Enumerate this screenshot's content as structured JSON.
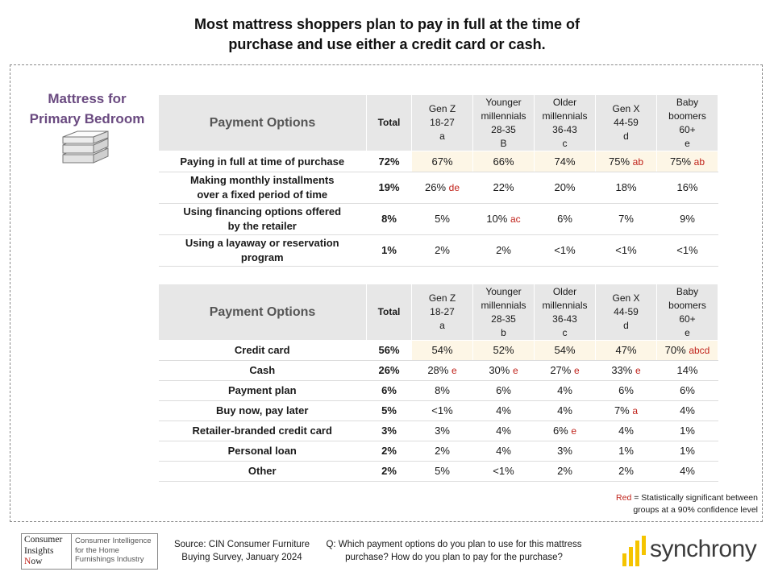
{
  "title": {
    "line1": "Most mattress shoppers plan to pay in full at the time of",
    "line2": "purchase and use either a credit card or cash."
  },
  "side_title": {
    "line1": "Mattress for",
    "line2": "Primary Bedroom"
  },
  "icons": {
    "mattress": "mattress-stack-icon",
    "synchrony": "synchrony-bars-icon"
  },
  "colors": {
    "significance_red": "#c0221a",
    "highlight_fill": "#fdf6e6",
    "header_fill": "#e7e7e7",
    "side_title": "#6a4a80"
  },
  "table1": {
    "headers": {
      "options": "Payment Options",
      "total": "Total",
      "gens": [
        {
          "l1": "",
          "l2": "Gen Z",
          "l3": "18-27",
          "l4": "a"
        },
        {
          "l1": "Younger",
          "l2": "millennials",
          "l3": "28-35",
          "l4": "B"
        },
        {
          "l1": "Older",
          "l2": "millennials",
          "l3": "36-43",
          "l4": "c"
        },
        {
          "l1": "",
          "l2": "Gen X",
          "l3": "44-59",
          "l4": "d"
        },
        {
          "l1": "Baby",
          "l2": "boomers",
          "l3": "60+",
          "l4": "e"
        }
      ]
    },
    "rows": [
      {
        "l1": "Paying in full at time of purchase",
        "l2": "",
        "total": "72%",
        "cells": [
          {
            "v": "67%",
            "s": ""
          },
          {
            "v": "66%",
            "s": ""
          },
          {
            "v": "74%",
            "s": ""
          },
          {
            "v": "75%",
            "s": "ab"
          },
          {
            "v": "75%",
            "s": "ab"
          }
        ]
      },
      {
        "l1": "Making monthly installments",
        "l2": "over a fixed period of time",
        "total": "19%",
        "cells": [
          {
            "v": "26%",
            "s": "de"
          },
          {
            "v": "22%",
            "s": ""
          },
          {
            "v": "20%",
            "s": ""
          },
          {
            "v": "18%",
            "s": ""
          },
          {
            "v": "16%",
            "s": ""
          }
        ]
      },
      {
        "l1": "Using financing options offered",
        "l2": "by the retailer",
        "total": "8%",
        "cells": [
          {
            "v": "5%",
            "s": ""
          },
          {
            "v": "10%",
            "s": "ac"
          },
          {
            "v": "6%",
            "s": ""
          },
          {
            "v": "7%",
            "s": ""
          },
          {
            "v": "9%",
            "s": ""
          }
        ]
      },
      {
        "l1": "Using a layaway or reservation",
        "l2": "program",
        "total": "1%",
        "cells": [
          {
            "v": "2%",
            "s": ""
          },
          {
            "v": "2%",
            "s": ""
          },
          {
            "v": "<1%",
            "s": ""
          },
          {
            "v": "<1%",
            "s": ""
          },
          {
            "v": "<1%",
            "s": ""
          }
        ]
      }
    ]
  },
  "table2": {
    "headers": {
      "options": "Payment Options",
      "total": "Total",
      "gens": [
        {
          "l1": "",
          "l2": "Gen Z",
          "l3": "18-27",
          "l4": "a"
        },
        {
          "l1": "Younger",
          "l2": "millennials",
          "l3": "28-35",
          "l4": "b"
        },
        {
          "l1": "Older",
          "l2": "millennials",
          "l3": "36-43",
          "l4": "c"
        },
        {
          "l1": "",
          "l2": "Gen X",
          "l3": "44-59",
          "l4": "d"
        },
        {
          "l1": "Baby",
          "l2": "boomers",
          "l3": "60+",
          "l4": "e"
        }
      ]
    },
    "rows": [
      {
        "l1": "Credit card",
        "l2": "",
        "total": "56%",
        "cells": [
          {
            "v": "54%",
            "s": ""
          },
          {
            "v": "52%",
            "s": ""
          },
          {
            "v": "54%",
            "s": ""
          },
          {
            "v": "47%",
            "s": ""
          },
          {
            "v": "70%",
            "s": "abcd"
          }
        ]
      },
      {
        "l1": "Cash",
        "l2": "",
        "total": "26%",
        "cells": [
          {
            "v": "28%",
            "s": "e"
          },
          {
            "v": "30%",
            "s": "e"
          },
          {
            "v": "27%",
            "s": "e"
          },
          {
            "v": "33%",
            "s": "e"
          },
          {
            "v": "14%",
            "s": ""
          }
        ]
      },
      {
        "l1": "Payment plan",
        "l2": "",
        "total": "6%",
        "cells": [
          {
            "v": "8%",
            "s": ""
          },
          {
            "v": "6%",
            "s": ""
          },
          {
            "v": "4%",
            "s": ""
          },
          {
            "v": "6%",
            "s": ""
          },
          {
            "v": "6%",
            "s": ""
          }
        ]
      },
      {
        "l1": "Buy now, pay later",
        "l2": "",
        "total": "5%",
        "cells": [
          {
            "v": "<1%",
            "s": ""
          },
          {
            "v": "4%",
            "s": ""
          },
          {
            "v": "4%",
            "s": ""
          },
          {
            "v": "7%",
            "s": "a"
          },
          {
            "v": "4%",
            "s": ""
          }
        ]
      },
      {
        "l1": "Retailer-branded credit card",
        "l2": "",
        "total": "3%",
        "cells": [
          {
            "v": "3%",
            "s": ""
          },
          {
            "v": "4%",
            "s": ""
          },
          {
            "v": "6%",
            "s": "e"
          },
          {
            "v": "4%",
            "s": ""
          },
          {
            "v": "1%",
            "s": ""
          }
        ]
      },
      {
        "l1": "Personal loan",
        "l2": "",
        "total": "2%",
        "cells": [
          {
            "v": "2%",
            "s": ""
          },
          {
            "v": "4%",
            "s": ""
          },
          {
            "v": "3%",
            "s": ""
          },
          {
            "v": "1%",
            "s": ""
          },
          {
            "v": "1%",
            "s": ""
          }
        ]
      },
      {
        "l1": "Other",
        "l2": "",
        "total": "2%",
        "cells": [
          {
            "v": "5%",
            "s": ""
          },
          {
            "v": "<1%",
            "s": ""
          },
          {
            "v": "2%",
            "s": ""
          },
          {
            "v": "2%",
            "s": ""
          },
          {
            "v": "4%",
            "s": ""
          }
        ]
      }
    ]
  },
  "note": {
    "red_word": "Red",
    "line1_rest": " = Statistically significant between",
    "line2": "groups at a 90% confidence level"
  },
  "footer": {
    "cin_logo": {
      "l1": "Consumer",
      "l2": "Insights",
      "l3_initial": "N",
      "l3_rest": "ow",
      "r1": "Consumer Intelligence",
      "r2": "for the Home",
      "r3": "Furnishings Industry"
    },
    "source_l1": "Source: CIN Consumer Furniture",
    "source_l2": "Buying Survey, January 2024",
    "question_l1": "Q: Which payment options do you plan to use for this mattress",
    "question_l2": "purchase? How do you plan to pay for the purchase?",
    "brand": "synchrony"
  }
}
